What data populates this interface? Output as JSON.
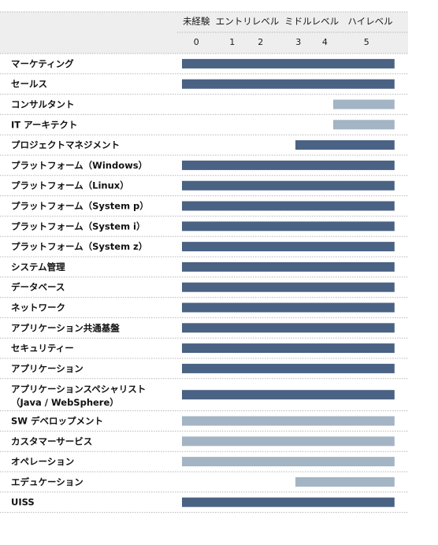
{
  "chart_data": {
    "type": "bar",
    "title": "",
    "level_headers": [
      "未経験",
      "エントリレベル",
      "ミドルレベル",
      "ハイレベル"
    ],
    "tick_labels": [
      "0",
      "1",
      "2",
      "3",
      "4",
      "5"
    ],
    "xlim": [
      0,
      5.6
    ],
    "grid": false,
    "legend": "none",
    "colors": {
      "dark": "#4a6283",
      "light": "#a3b4c4"
    },
    "categories": [
      {
        "label": "マーケティング",
        "from": 0,
        "to": 5.6,
        "shade": "dark"
      },
      {
        "label": "セールス",
        "from": 0,
        "to": 5.6,
        "shade": "dark"
      },
      {
        "label": "コンサルタント",
        "from": 4,
        "to": 5.6,
        "shade": "light"
      },
      {
        "label": "IT アーキテクト",
        "from": 4,
        "to": 5.6,
        "shade": "light"
      },
      {
        "label": "プロジェクトマネジメント",
        "from": 3,
        "to": 5.6,
        "shade": "dark"
      },
      {
        "label": "プラットフォーム（Windows）",
        "from": 0,
        "to": 5.6,
        "shade": "dark"
      },
      {
        "label": "プラットフォーム（Linux）",
        "from": 0,
        "to": 5.6,
        "shade": "dark"
      },
      {
        "label": "プラットフォーム（System p）",
        "from": 0,
        "to": 5.6,
        "shade": "dark"
      },
      {
        "label": "プラットフォーム（System i）",
        "from": 0,
        "to": 5.6,
        "shade": "dark"
      },
      {
        "label": "プラットフォーム（System z）",
        "from": 0,
        "to": 5.6,
        "shade": "dark"
      },
      {
        "label": "システム管理",
        "from": 0,
        "to": 5.6,
        "shade": "dark"
      },
      {
        "label": "データベース",
        "from": 0,
        "to": 5.6,
        "shade": "dark"
      },
      {
        "label": "ネットワーク",
        "from": 0,
        "to": 5.6,
        "shade": "dark"
      },
      {
        "label": "アプリケーション共通基盤",
        "from": 0,
        "to": 5.6,
        "shade": "dark"
      },
      {
        "label": "セキュリティー",
        "from": 0,
        "to": 5.6,
        "shade": "dark"
      },
      {
        "label": "アプリケーション",
        "from": 0,
        "to": 5.6,
        "shade": "dark"
      },
      {
        "label": "アプリケーションスペシャリスト",
        "label2": "（Java / WebSphere）",
        "from": 0,
        "to": 5.6,
        "shade": "dark"
      },
      {
        "label": "SW デベロップメント",
        "from": 0,
        "to": 5.6,
        "shade": "light"
      },
      {
        "label": "カスタマーサービス",
        "from": 0,
        "to": 5.6,
        "shade": "light"
      },
      {
        "label": "オペレーション",
        "from": 0,
        "to": 5.6,
        "shade": "light"
      },
      {
        "label": "エデュケーション",
        "from": 3,
        "to": 5.6,
        "shade": "light"
      },
      {
        "label": "UISS",
        "from": 0,
        "to": 5.6,
        "shade": "dark"
      }
    ]
  }
}
